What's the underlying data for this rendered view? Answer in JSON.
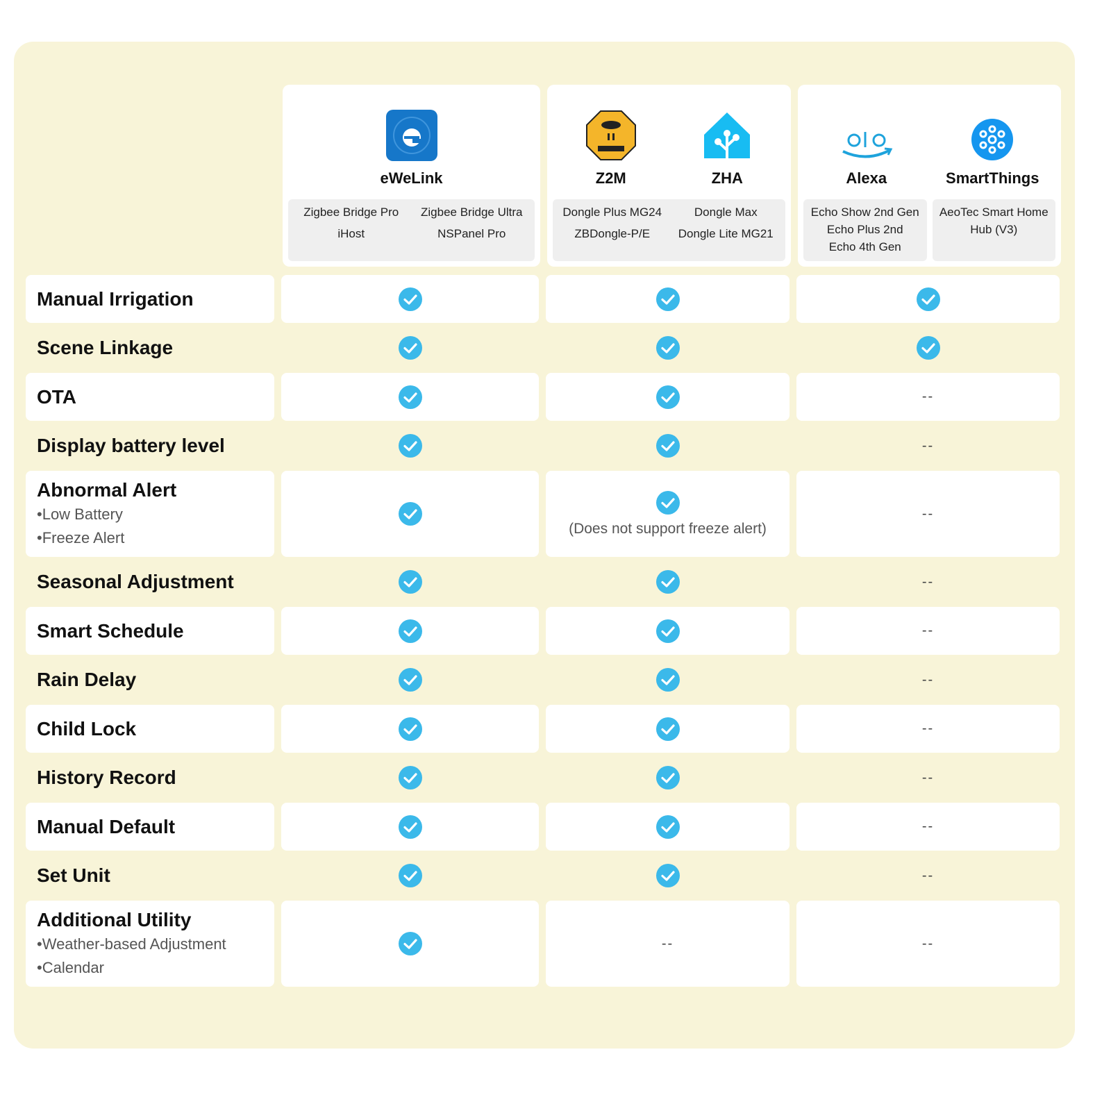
{
  "header": {
    "groups": [
      {
        "apps": [
          "eWeLink"
        ],
        "devices": [
          [
            "Zigbee Bridge Pro",
            "Zigbee Bridge Ultra",
            "iHost",
            "NSPanel Pro"
          ]
        ]
      },
      {
        "apps": [
          "Z2M",
          "ZHA"
        ],
        "devices": [
          [
            "Dongle Plus MG24",
            "Dongle  Max",
            "ZBDongle-P/E",
            "Dongle Lite MG21"
          ]
        ]
      },
      {
        "apps": [
          "Alexa",
          "SmartThings"
        ],
        "devices": [
          [
            "Echo Show 2nd Gen",
            "Echo Plus 2nd",
            "Echo 4th Gen"
          ],
          [
            "AeoTec Smart Home Hub (V3)"
          ]
        ]
      }
    ]
  },
  "table": {
    "rows": [
      {
        "feature": "Manual Irrigation",
        "cells": [
          {
            "supported": true
          },
          {
            "supported": true
          },
          {
            "supported": true
          }
        ]
      },
      {
        "feature": "Scene Linkage",
        "cells": [
          {
            "supported": true
          },
          {
            "supported": true
          },
          {
            "supported": true
          }
        ]
      },
      {
        "feature": "OTA",
        "cells": [
          {
            "supported": true
          },
          {
            "supported": true
          },
          {
            "text": "--"
          }
        ]
      },
      {
        "feature": "Display battery level",
        "cells": [
          {
            "supported": true
          },
          {
            "supported": true
          },
          {
            "text": "--"
          }
        ]
      },
      {
        "feature": "Abnormal Alert",
        "items": [
          "Low Battery",
          "Freeze Alert"
        ],
        "cells": [
          {
            "supported": true
          },
          {
            "supported": true,
            "note": "(Does not support freeze alert)"
          },
          {
            "text": "--"
          }
        ]
      },
      {
        "feature": "Seasonal Adjustment",
        "cells": [
          {
            "supported": true
          },
          {
            "supported": true
          },
          {
            "text": "--"
          }
        ]
      },
      {
        "feature": "Smart Schedule",
        "cells": [
          {
            "supported": true
          },
          {
            "supported": true
          },
          {
            "text": "--"
          }
        ]
      },
      {
        "feature": "Rain Delay",
        "cells": [
          {
            "supported": true
          },
          {
            "supported": true
          },
          {
            "text": "--"
          }
        ]
      },
      {
        "feature": "Child Lock",
        "cells": [
          {
            "supported": true
          },
          {
            "supported": true
          },
          {
            "text": "--"
          }
        ]
      },
      {
        "feature": "History Record",
        "cells": [
          {
            "supported": true
          },
          {
            "supported": true
          },
          {
            "text": "--"
          }
        ]
      },
      {
        "feature": "Manual Default",
        "cells": [
          {
            "supported": true
          },
          {
            "supported": true
          },
          {
            "text": "--"
          }
        ]
      },
      {
        "feature": "Set Unit",
        "cells": [
          {
            "supported": true
          },
          {
            "supported": true
          },
          {
            "text": "--"
          }
        ]
      },
      {
        "feature": "Additional Utility",
        "items": [
          "Weather-based Adjustment",
          "Calendar"
        ],
        "cells": [
          {
            "supported": true
          },
          {
            "text": "--"
          },
          {
            "text": "--"
          }
        ]
      }
    ]
  }
}
